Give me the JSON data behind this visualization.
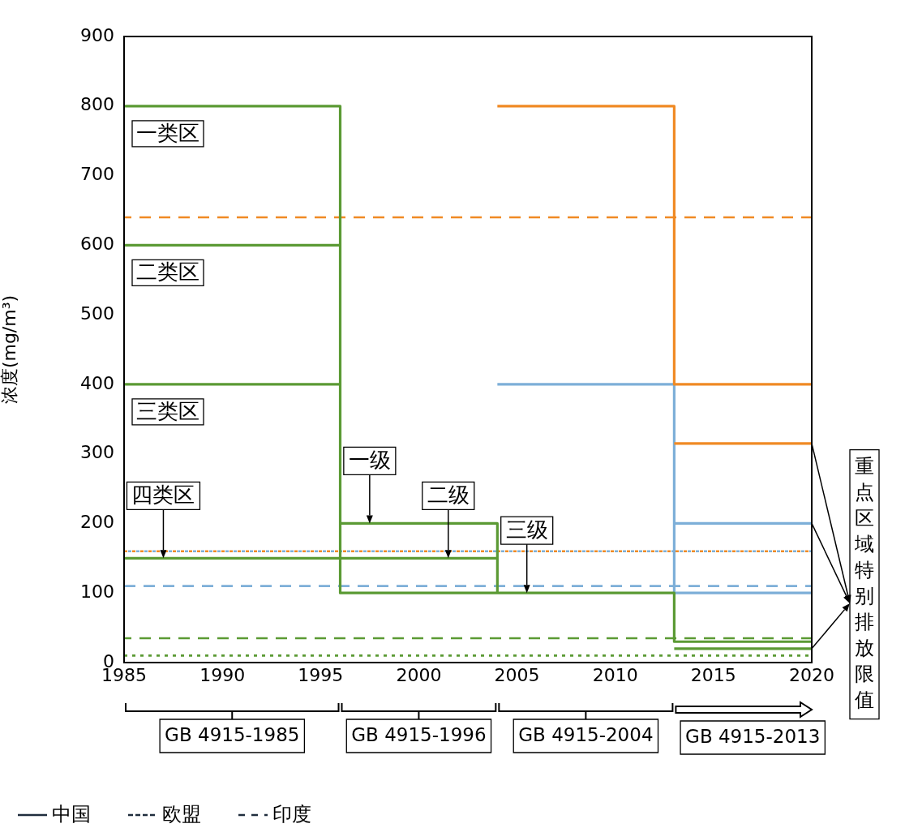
{
  "chart_data": {
    "type": "step",
    "ylabel": "浓度(mg/m³)",
    "xlim": [
      1985,
      2020
    ],
    "xticks": [
      1985,
      1990,
      1995,
      2000,
      2005,
      2010,
      2015,
      2020
    ],
    "ylim": [
      0,
      900
    ],
    "yticks": [
      0,
      100,
      200,
      300,
      400,
      500,
      600,
      700,
      800,
      900
    ],
    "grid": false,
    "marker": "none",
    "series": [
      {
        "line_style": "solid",
        "color": "#5b9a34",
        "x": [
          1985,
          1996,
          2013,
          2020
        ],
        "values": [
          800,
          100,
          30,
          30
        ]
      },
      {
        "line_style": "solid",
        "color": "#5b9a34",
        "x": [
          1985,
          1996
        ],
        "values": [
          600,
          600
        ]
      },
      {
        "line_style": "solid",
        "color": "#5b9a34",
        "x": [
          1985,
          1996
        ],
        "values": [
          400,
          400
        ]
      },
      {
        "line_style": "solid",
        "color": "#5b9a34",
        "x": [
          1985,
          2004
        ],
        "values": [
          150,
          150
        ]
      },
      {
        "line_style": "solid",
        "color": "#5b9a34",
        "x": [
          1996,
          2004
        ],
        "values": [
          200,
          100
        ]
      },
      {
        "line_style": "solid",
        "color": "#5b9a34",
        "x": [
          2013,
          2020
        ],
        "values": [
          20,
          20
        ]
      },
      {
        "line_style": "solid",
        "color": "#f08a24",
        "x": [
          2004,
          2013,
          2020
        ],
        "values": [
          800,
          400,
          400
        ]
      },
      {
        "line_style": "solid",
        "color": "#f08a24",
        "x": [
          2013,
          2020
        ],
        "values": [
          315,
          315
        ]
      },
      {
        "line_style": "solid",
        "color": "#7dafd8",
        "x": [
          2004,
          2013,
          2020
        ],
        "values": [
          400,
          100,
          100
        ]
      },
      {
        "line_style": "solid",
        "color": "#7dafd8",
        "x": [
          2013,
          2020
        ],
        "values": [
          200,
          200
        ]
      },
      {
        "line_style": "dotted",
        "color": "#f08a24",
        "x": [
          1985,
          2020
        ],
        "values": [
          160,
          160
        ]
      },
      {
        "line_style": "dotted",
        "color": "#7dafd8",
        "x": [
          1985,
          2020
        ],
        "values": [
          160,
          160
        ]
      },
      {
        "line_style": "dotted",
        "color": "#5b9a34",
        "x": [
          1985,
          2020
        ],
        "values": [
          10,
          10
        ]
      },
      {
        "line_style": "dashed",
        "color": "#f08a24",
        "x": [
          1985,
          2020
        ],
        "values": [
          640,
          640
        ]
      },
      {
        "line_style": "dashed",
        "color": "#7dafd8",
        "x": [
          1985,
          2020
        ],
        "values": [
          110,
          110
        ]
      },
      {
        "line_style": "dashed",
        "color": "#5b9a34",
        "x": [
          1985,
          2020
        ],
        "values": [
          35,
          35
        ]
      }
    ],
    "annotations": [
      {
        "text": "一类区",
        "x": 1985,
        "y": 800
      },
      {
        "text": "二类区",
        "x": 1985,
        "y": 600
      },
      {
        "text": "三类区",
        "x": 1985,
        "y": 400
      },
      {
        "text": "四类区",
        "x": 1987,
        "y": 150
      },
      {
        "text": "一级",
        "x": 1997.5,
        "y": 200
      },
      {
        "text": "二级",
        "x": 2001.5,
        "y": 150
      },
      {
        "text": "三级",
        "x": 2005.5,
        "y": 100
      },
      "重点区域特别排放限值",
      "中国",
      "欧盟",
      "印度",
      "GB 4915-1985",
      "GB 4915-1996",
      "GB 4915-2004",
      "GB 4915-2013"
    ]
  }
}
